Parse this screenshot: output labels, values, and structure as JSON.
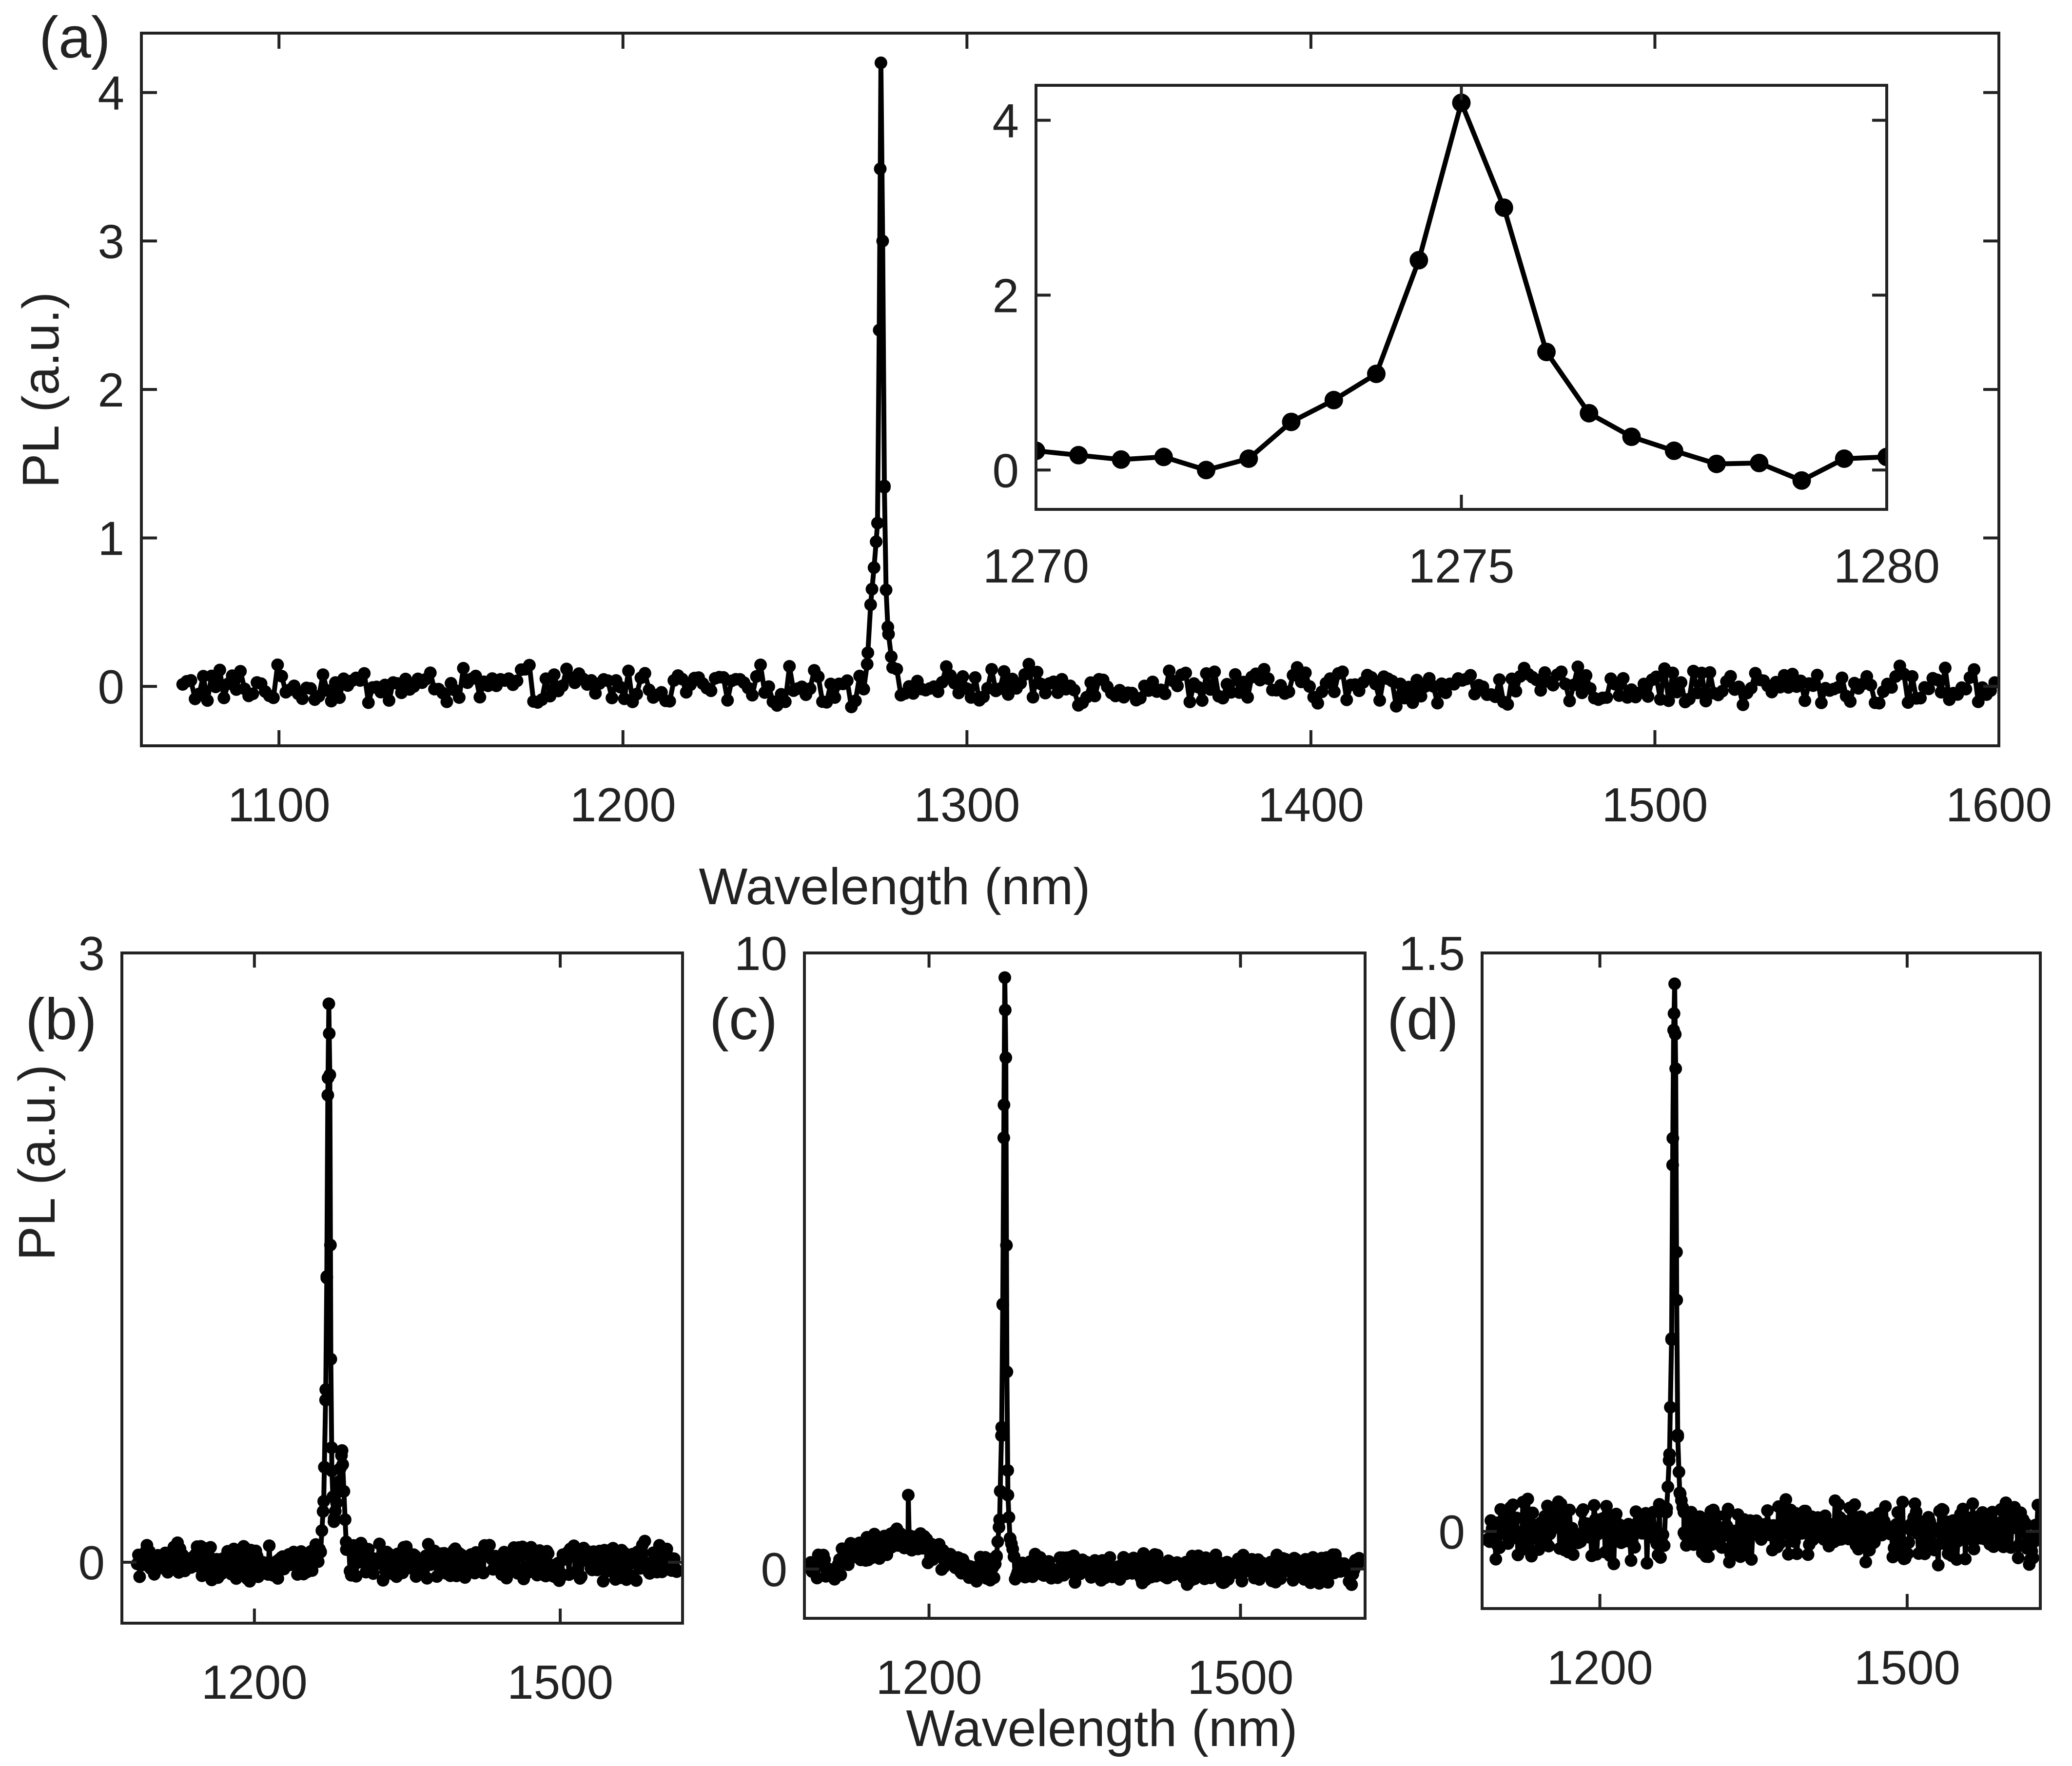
{
  "figure": {
    "xlabel_bottom": "Wavelength (nm)"
  },
  "chart_data": [
    {
      "id": "a",
      "panel_label": "(a)",
      "type": "line",
      "xlabel": "Wavelength (nm)",
      "ylabel": "PL (a.u.)",
      "xlim": [
        1060,
        1600
      ],
      "ylim": [
        -0.4,
        4.4
      ],
      "xticks": [
        1100,
        1200,
        1300,
        1400,
        1500,
        1600
      ],
      "yticks": [
        0,
        1,
        2,
        3,
        4
      ],
      "tick_labels_x": [
        "1100",
        "1200",
        "1300",
        "1400",
        "1500",
        "1600"
      ],
      "tick_labels_y": [
        "0",
        "1",
        "2",
        "3",
        "4"
      ],
      "x_range": [
        1072,
        1600
      ],
      "noise_amplitude": 0.1,
      "peak": {
        "x": [
          1271,
          1272,
          1273,
          1274,
          1274.5,
          1275,
          1275.5,
          1276,
          1276.5,
          1277,
          1278
        ],
        "y": [
          0.15,
          0.55,
          0.8,
          1.1,
          2.4,
          4.2,
          3.0,
          1.35,
          0.65,
          0.4,
          0.2
        ]
      }
    },
    {
      "id": "a-inset",
      "panel_label": "",
      "type": "line",
      "xlabel": "",
      "ylabel": "",
      "xlim": [
        1270,
        1280
      ],
      "ylim": [
        -0.45,
        4.4
      ],
      "xticks": [
        1270,
        1275,
        1280
      ],
      "yticks": [
        0,
        2,
        4
      ],
      "tick_labels_x": [
        "1270",
        "1275",
        "1280"
      ],
      "tick_labels_y": [
        "0",
        "2",
        "4"
      ],
      "x": [
        1270,
        1270.5,
        1271,
        1271.5,
        1272,
        1272.5,
        1273,
        1273.5,
        1274,
        1274.5,
        1275,
        1275.5,
        1276,
        1276.5,
        1277,
        1277.5,
        1278,
        1278.5,
        1279,
        1279.5,
        1280
      ],
      "y": [
        0.22,
        0.17,
        0.12,
        0.15,
        0.0,
        0.13,
        0.55,
        0.8,
        1.1,
        2.4,
        4.2,
        3.0,
        1.35,
        0.65,
        0.38,
        0.22,
        0.07,
        0.08,
        -0.12,
        0.13,
        0.15
      ]
    },
    {
      "id": "b",
      "panel_label": "(b)",
      "type": "line",
      "xlabel": "",
      "ylabel": "PL (a.u.)",
      "xlim": [
        1070,
        1620
      ],
      "ylim": [
        -0.3,
        3
      ],
      "xticks": [
        1200,
        1500
      ],
      "yticks": [
        0,
        3
      ],
      "tick_labels_x": [
        "1200",
        "1500"
      ],
      "tick_labels_y": [
        "0",
        "3"
      ],
      "x_range": [
        1085,
        1615
      ],
      "noise_amplitude": 0.07,
      "peak": {
        "x": [
          1265,
          1268,
          1270,
          1271,
          1272,
          1273,
          1274,
          1275,
          1276,
          1278,
          1282,
          1286,
          1290
        ],
        "y": [
          0.05,
          0.3,
          0.85,
          1.4,
          2.3,
          2.75,
          2.4,
          1.0,
          0.45,
          0.2,
          0.35,
          0.55,
          0.1
        ]
      }
    },
    {
      "id": "c",
      "panel_label": "(c)",
      "type": "line",
      "xlabel": "",
      "ylabel": "",
      "xlim": [
        1080,
        1620
      ],
      "ylim": [
        -0.8,
        10
      ],
      "xticks": [
        1200,
        1500
      ],
      "yticks": [
        0,
        10
      ],
      "tick_labels_x": [
        "1200",
        "1500"
      ],
      "tick_labels_y": [
        "0",
        "10"
      ],
      "x_range": [
        1085,
        1615
      ],
      "noise_amplitude": 0.18,
      "bump": {
        "center": 1170,
        "width": 60,
        "height": 0.45
      },
      "spikes": {
        "x": [
          1180
        ],
        "y": [
          1.2
        ]
      },
      "peak": {
        "x": [
          1265,
          1268,
          1270,
          1271,
          1272,
          1273,
          1274,
          1275,
          1276,
          1278,
          1282
        ],
        "y": [
          0.2,
          0.8,
          2.3,
          4.3,
          7.0,
          9.6,
          8.3,
          3.2,
          1.2,
          0.5,
          0.2
        ]
      }
    },
    {
      "id": "d",
      "panel_label": "(d)",
      "type": "line",
      "xlabel": "",
      "ylabel": "",
      "xlim": [
        1085,
        1630
      ],
      "ylim": [
        -0.2,
        1.5
      ],
      "xticks": [
        1200,
        1500
      ],
      "yticks": [
        0,
        1.5
      ],
      "tick_labels_x": [
        "1200",
        "1500"
      ],
      "tick_labels_y": [
        "0",
        "1.5"
      ],
      "x_range": [
        1090,
        1628
      ],
      "noise_amplitude": 0.06,
      "peak": {
        "x": [
          1265,
          1268,
          1270,
          1271,
          1272,
          1273,
          1274,
          1275,
          1276,
          1278,
          1282
        ],
        "y": [
          0.05,
          0.2,
          0.5,
          0.95,
          1.3,
          1.42,
          1.2,
          0.6,
          0.25,
          0.1,
          0.05
        ]
      }
    }
  ]
}
